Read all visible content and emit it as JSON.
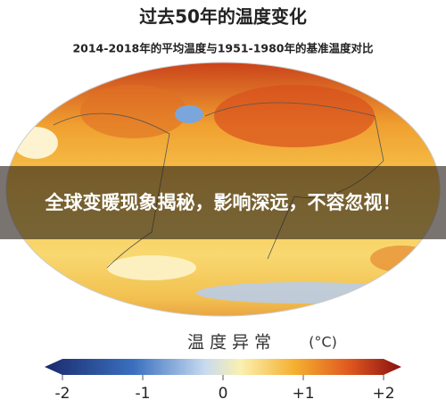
{
  "header": {
    "title": "过去50年的温度变化",
    "subtitle": "2014-2018年的平均温度与1951-1980年的基准温度对比"
  },
  "banner": {
    "text": "全球变暖现象揭秘，影响深远，不容忽视！"
  },
  "legend": {
    "title": "温度异常",
    "unit": "(°C)",
    "ticks": [
      "-2",
      "-1",
      "0",
      "+1",
      "+2"
    ]
  }
}
